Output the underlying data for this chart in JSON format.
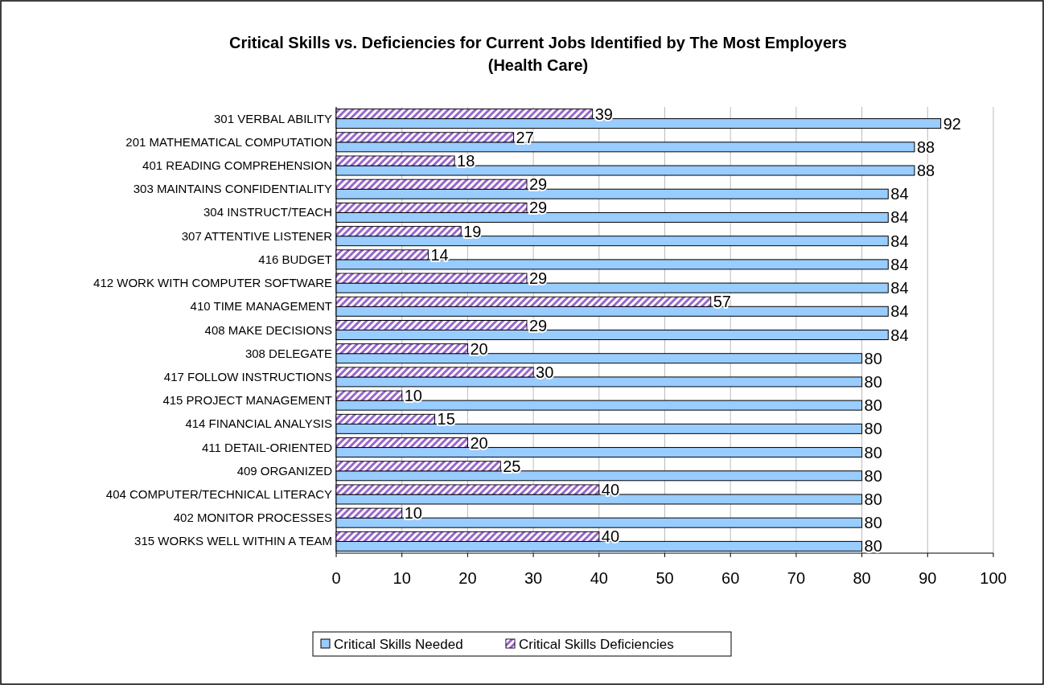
{
  "chart_data": {
    "type": "bar",
    "orientation": "horizontal",
    "title": "Critical Skills vs. Deficiencies for Current Jobs Identified by The Most Employers (Health Care)",
    "categories": [
      "301 VERBAL ABILITY",
      "201 MATHEMATICAL COMPUTATION",
      "401 READING COMPREHENSION",
      "303 MAINTAINS CONFIDENTIALITY",
      "304 INSTRUCT/TEACH",
      "307 ATTENTIVE LISTENER",
      "416 BUDGET",
      "412 WORK WITH COMPUTER SOFTWARE",
      "410 TIME MANAGEMENT",
      "408 MAKE DECISIONS",
      "308 DELEGATE",
      "417 FOLLOW INSTRUCTIONS",
      "415 PROJECT MANAGEMENT",
      "414 FINANCIAL ANALYSIS",
      "411 DETAIL-ORIENTED",
      "409 ORGANIZED",
      "404 COMPUTER/TECHNICAL LITERACY",
      "402 MONITOR PROCESSES",
      "315 WORKS WELL WITHIN A TEAM"
    ],
    "series": [
      {
        "name": "Critical Skills Needed",
        "color": "#99ccff",
        "values": [
          92,
          88,
          88,
          84,
          84,
          84,
          84,
          84,
          84,
          84,
          80,
          80,
          80,
          80,
          80,
          80,
          80,
          80,
          80
        ]
      },
      {
        "name": "Critical Skills Deficiencies",
        "color": "#9966cc",
        "values": [
          39,
          27,
          18,
          29,
          29,
          19,
          14,
          29,
          57,
          29,
          20,
          30,
          10,
          15,
          20,
          25,
          40,
          10,
          40
        ]
      }
    ],
    "xlim": [
      0,
      100
    ],
    "xticks": [
      0,
      10,
      20,
      30,
      40,
      50,
      60,
      70,
      80,
      90,
      100
    ],
    "grid": "x",
    "legend": "bottom",
    "data_labels": true
  }
}
